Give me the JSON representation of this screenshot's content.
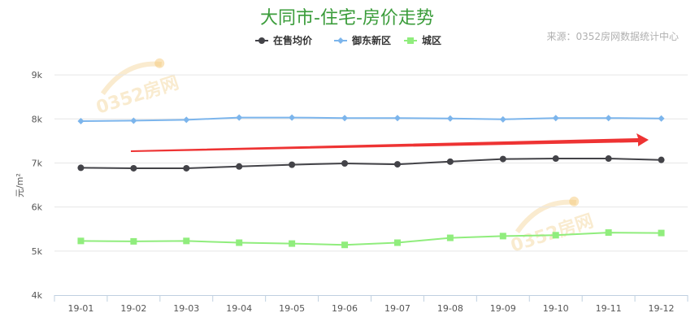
{
  "chart_data": {
    "type": "line",
    "title": "大同市-住宅-房价走势",
    "source": "来源：0352房网数据统计中心",
    "ylabel": "元/m²",
    "ylim": [
      4000,
      9500
    ],
    "yticks": [
      {
        "value": 4000,
        "label": "4k"
      },
      {
        "value": 5000,
        "label": "5k"
      },
      {
        "value": 6000,
        "label": "6k"
      },
      {
        "value": 7000,
        "label": "7k"
      },
      {
        "value": 8000,
        "label": "8k"
      },
      {
        "value": 9000,
        "label": "9k"
      }
    ],
    "categories": [
      "19-01",
      "19-02",
      "19-03",
      "19-04",
      "19-05",
      "19-06",
      "19-07",
      "19-08",
      "19-09",
      "19-10",
      "19-11",
      "19-12"
    ],
    "series": [
      {
        "name": "在售均价",
        "color": "#434348",
        "marker": "circle",
        "values": [
          6890,
          6880,
          6880,
          6920,
          6960,
          6990,
          6970,
          7030,
          7090,
          7100,
          7100,
          7070
        ]
      },
      {
        "name": "御东新区",
        "color": "#7cb5ec",
        "marker": "diamond",
        "values": [
          7950,
          7960,
          7980,
          8030,
          8030,
          8020,
          8020,
          8010,
          7990,
          8020,
          8020,
          8010
        ]
      },
      {
        "name": "城区",
        "color": "#90ed7d",
        "marker": "square",
        "values": [
          5230,
          5220,
          5230,
          5190,
          5170,
          5140,
          5190,
          5300,
          5340,
          5360,
          5420,
          5410
        ]
      }
    ],
    "grid": true,
    "legend": "top-center",
    "annotation": {
      "type": "arrow",
      "color": "#ee3333",
      "direction": "up-right"
    },
    "watermark": "0352房网"
  }
}
